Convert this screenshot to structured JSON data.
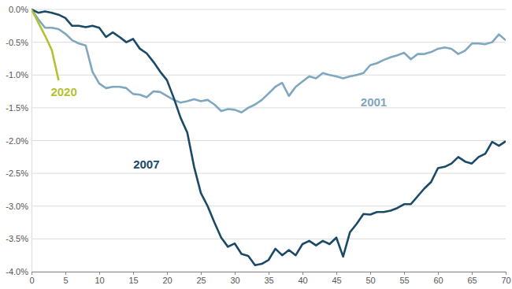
{
  "chart_data": {
    "type": "line",
    "x": [
      0,
      1,
      2,
      3,
      4,
      5,
      6,
      7,
      8,
      9,
      10,
      11,
      12,
      13,
      14,
      15,
      16,
      17,
      18,
      19,
      20,
      21,
      22,
      23,
      24,
      25,
      26,
      27,
      28,
      29,
      30,
      31,
      32,
      33,
      34,
      35,
      36,
      37,
      38,
      39,
      40,
      41,
      42,
      43,
      44,
      45,
      46,
      47,
      48,
      49,
      50,
      51,
      52,
      53,
      54,
      55,
      56,
      57,
      58,
      59,
      60,
      61,
      62,
      63,
      64,
      65,
      66,
      67,
      68,
      69,
      70
    ],
    "series": [
      {
        "name": "2020",
        "color": "#b3c232",
        "values": [
          0,
          -0.2,
          -0.4,
          -0.62,
          -1.08,
          null,
          null,
          null,
          null,
          null,
          null,
          null,
          null,
          null,
          null,
          null,
          null,
          null,
          null,
          null,
          null,
          null,
          null,
          null,
          null,
          null,
          null,
          null,
          null,
          null,
          null,
          null,
          null,
          null,
          null,
          null,
          null,
          null,
          null,
          null,
          null,
          null,
          null,
          null,
          null,
          null,
          null,
          null,
          null,
          null,
          null,
          null,
          null,
          null,
          null,
          null,
          null,
          null,
          null,
          null,
          null,
          null,
          null,
          null,
          null,
          null,
          null,
          null,
          null,
          null,
          null
        ]
      },
      {
        "name": "2007",
        "color": "#1b4968",
        "values": [
          0,
          -0.05,
          -0.03,
          -0.05,
          -0.08,
          -0.13,
          -0.25,
          -0.25,
          -0.27,
          -0.25,
          -0.28,
          -0.42,
          -0.35,
          -0.42,
          -0.5,
          -0.45,
          -0.6,
          -0.67,
          -0.8,
          -0.95,
          -1.08,
          -1.35,
          -1.65,
          -1.88,
          -2.4,
          -2.8,
          -3.0,
          -3.25,
          -3.48,
          -3.62,
          -3.57,
          -3.73,
          -3.76,
          -3.9,
          -3.88,
          -3.82,
          -3.65,
          -3.75,
          -3.67,
          -3.75,
          -3.58,
          -3.53,
          -3.6,
          -3.53,
          -3.58,
          -3.48,
          -3.77,
          -3.4,
          -3.27,
          -3.12,
          -3.13,
          -3.09,
          -3.09,
          -3.07,
          -3.03,
          -2.97,
          -2.97,
          -2.85,
          -2.73,
          -2.63,
          -2.42,
          -2.4,
          -2.35,
          -2.25,
          -2.32,
          -2.35,
          -2.25,
          -2.2,
          -2.02,
          -2.08,
          -2.01
        ]
      },
      {
        "name": "2001",
        "color": "#7fa7bf",
        "values": [
          0,
          -0.15,
          -0.28,
          -0.28,
          -0.3,
          -0.37,
          -0.47,
          -0.52,
          -0.55,
          -0.95,
          -1.13,
          -1.2,
          -1.18,
          -1.18,
          -1.2,
          -1.29,
          -1.3,
          -1.34,
          -1.25,
          -1.26,
          -1.32,
          -1.38,
          -1.42,
          -1.4,
          -1.37,
          -1.4,
          -1.38,
          -1.45,
          -1.55,
          -1.52,
          -1.53,
          -1.57,
          -1.5,
          -1.45,
          -1.38,
          -1.28,
          -1.18,
          -1.12,
          -1.32,
          -1.18,
          -1.1,
          -1.02,
          -1.05,
          -0.97,
          -1.0,
          -1.02,
          -1.05,
          -1.02,
          -1.0,
          -0.97,
          -0.85,
          -0.82,
          -0.77,
          -0.73,
          -0.7,
          -0.66,
          -0.76,
          -0.68,
          -0.68,
          -0.65,
          -0.6,
          -0.58,
          -0.6,
          -0.68,
          -0.63,
          -0.52,
          -0.52,
          -0.53,
          -0.5,
          -0.38,
          -0.47
        ]
      }
    ],
    "xlim": [
      0,
      70
    ],
    "xticks": [
      0,
      5,
      10,
      15,
      20,
      25,
      30,
      35,
      40,
      45,
      50,
      55,
      60,
      65,
      70
    ],
    "ylim": [
      -4,
      0
    ],
    "yticks": [
      {
        "value": 0,
        "label": "0.0%"
      },
      {
        "value": -0.5,
        "label": "-0.5%"
      },
      {
        "value": -1,
        "label": "-1.0%"
      },
      {
        "value": -1.5,
        "label": "-1.5%"
      },
      {
        "value": -2,
        "label": "-2.0%"
      },
      {
        "value": -2.5,
        "label": "-2.5%"
      },
      {
        "value": -3,
        "label": "-3.0%"
      },
      {
        "value": -3.5,
        "label": "-3.5%"
      },
      {
        "value": -4,
        "label": "-4.0%"
      }
    ],
    "grid": true
  }
}
